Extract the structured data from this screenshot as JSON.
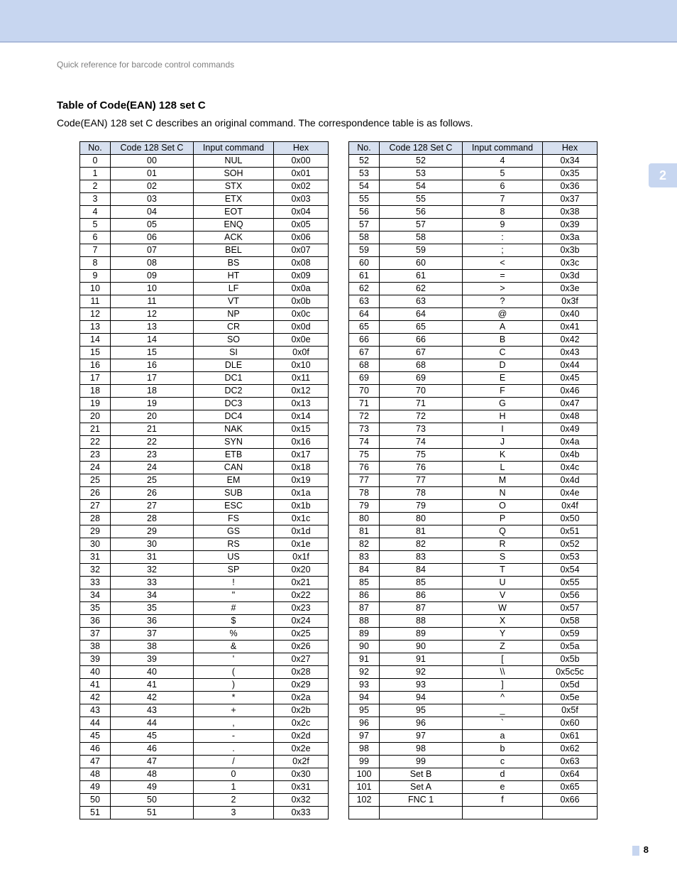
{
  "banner": {
    "background": "#c7d6f0",
    "border": "#aab9da"
  },
  "breadcrumb": "Quick reference for barcode control commands",
  "heading": "Table of Code(EAN) 128 set C",
  "intro": "Code(EAN) 128 set C describes an original command. The correspondence table is as follows.",
  "side_tab": "2",
  "page_number": "8",
  "table": {
    "header_bg": "#d7e0ef",
    "headers": [
      "No.",
      "Code 128 Set C",
      "Input command",
      "Hex"
    ],
    "rows_left": [
      [
        "0",
        "00",
        "NUL",
        "0x00"
      ],
      [
        "1",
        "01",
        "SOH",
        "0x01"
      ],
      [
        "2",
        "02",
        "STX",
        "0x02"
      ],
      [
        "3",
        "03",
        "ETX",
        "0x03"
      ],
      [
        "4",
        "04",
        "EOT",
        "0x04"
      ],
      [
        "5",
        "05",
        "ENQ",
        "0x05"
      ],
      [
        "6",
        "06",
        "ACK",
        "0x06"
      ],
      [
        "7",
        "07",
        "BEL",
        "0x07"
      ],
      [
        "8",
        "08",
        "BS",
        "0x08"
      ],
      [
        "9",
        "09",
        "HT",
        "0x09"
      ],
      [
        "10",
        "10",
        "LF",
        "0x0a"
      ],
      [
        "11",
        "11",
        "VT",
        "0x0b"
      ],
      [
        "12",
        "12",
        "NP",
        "0x0c"
      ],
      [
        "13",
        "13",
        "CR",
        "0x0d"
      ],
      [
        "14",
        "14",
        "SO",
        "0x0e"
      ],
      [
        "15",
        "15",
        "SI",
        "0x0f"
      ],
      [
        "16",
        "16",
        "DLE",
        "0x10"
      ],
      [
        "17",
        "17",
        "DC1",
        "0x11"
      ],
      [
        "18",
        "18",
        "DC2",
        "0x12"
      ],
      [
        "19",
        "19",
        "DC3",
        "0x13"
      ],
      [
        "20",
        "20",
        "DC4",
        "0x14"
      ],
      [
        "21",
        "21",
        "NAK",
        "0x15"
      ],
      [
        "22",
        "22",
        "SYN",
        "0x16"
      ],
      [
        "23",
        "23",
        "ETB",
        "0x17"
      ],
      [
        "24",
        "24",
        "CAN",
        "0x18"
      ],
      [
        "25",
        "25",
        "EM",
        "0x19"
      ],
      [
        "26",
        "26",
        "SUB",
        "0x1a"
      ],
      [
        "27",
        "27",
        "ESC",
        "0x1b"
      ],
      [
        "28",
        "28",
        "FS",
        "0x1c"
      ],
      [
        "29",
        "29",
        "GS",
        "0x1d"
      ],
      [
        "30",
        "30",
        "RS",
        "0x1e"
      ],
      [
        "31",
        "31",
        "US",
        "0x1f"
      ],
      [
        "32",
        "32",
        "SP",
        "0x20"
      ],
      [
        "33",
        "33",
        "!",
        "0x21"
      ],
      [
        "34",
        "34",
        "\"",
        "0x22"
      ],
      [
        "35",
        "35",
        "#",
        "0x23"
      ],
      [
        "36",
        "36",
        "$",
        "0x24"
      ],
      [
        "37",
        "37",
        "%",
        "0x25"
      ],
      [
        "38",
        "38",
        "&",
        "0x26"
      ],
      [
        "39",
        "39",
        "'",
        "0x27"
      ],
      [
        "40",
        "40",
        "(",
        "0x28"
      ],
      [
        "41",
        "41",
        ")",
        "0x29"
      ],
      [
        "42",
        "42",
        "*",
        "0x2a"
      ],
      [
        "43",
        "43",
        "+",
        "0x2b"
      ],
      [
        "44",
        "44",
        ",",
        "0x2c"
      ],
      [
        "45",
        "45",
        "-",
        "0x2d"
      ],
      [
        "46",
        "46",
        ".",
        "0x2e"
      ],
      [
        "47",
        "47",
        "/",
        "0x2f"
      ],
      [
        "48",
        "48",
        "0",
        "0x30"
      ],
      [
        "49",
        "49",
        "1",
        "0x31"
      ],
      [
        "50",
        "50",
        "2",
        "0x32"
      ],
      [
        "51",
        "51",
        "3",
        "0x33"
      ]
    ],
    "rows_right": [
      [
        "52",
        "52",
        "4",
        "0x34"
      ],
      [
        "53",
        "53",
        "5",
        "0x35"
      ],
      [
        "54",
        "54",
        "6",
        "0x36"
      ],
      [
        "55",
        "55",
        "7",
        "0x37"
      ],
      [
        "56",
        "56",
        "8",
        "0x38"
      ],
      [
        "57",
        "57",
        "9",
        "0x39"
      ],
      [
        "58",
        "58",
        ":",
        "0x3a"
      ],
      [
        "59",
        "59",
        ";",
        "0x3b"
      ],
      [
        "60",
        "60",
        "<",
        "0x3c"
      ],
      [
        "61",
        "61",
        "=",
        "0x3d"
      ],
      [
        "62",
        "62",
        ">",
        "0x3e"
      ],
      [
        "63",
        "63",
        "?",
        "0x3f"
      ],
      [
        "64",
        "64",
        "@",
        "0x40"
      ],
      [
        "65",
        "65",
        "A",
        "0x41"
      ],
      [
        "66",
        "66",
        "B",
        "0x42"
      ],
      [
        "67",
        "67",
        "C",
        "0x43"
      ],
      [
        "68",
        "68",
        "D",
        "0x44"
      ],
      [
        "69",
        "69",
        "E",
        "0x45"
      ],
      [
        "70",
        "70",
        "F",
        "0x46"
      ],
      [
        "71",
        "71",
        "G",
        "0x47"
      ],
      [
        "72",
        "72",
        "H",
        "0x48"
      ],
      [
        "73",
        "73",
        "I",
        "0x49"
      ],
      [
        "74",
        "74",
        "J",
        "0x4a"
      ],
      [
        "75",
        "75",
        "K",
        "0x4b"
      ],
      [
        "76",
        "76",
        "L",
        "0x4c"
      ],
      [
        "77",
        "77",
        "M",
        "0x4d"
      ],
      [
        "78",
        "78",
        "N",
        "0x4e"
      ],
      [
        "79",
        "79",
        "O",
        "0x4f"
      ],
      [
        "80",
        "80",
        "P",
        "0x50"
      ],
      [
        "81",
        "81",
        "Q",
        "0x51"
      ],
      [
        "82",
        "82",
        "R",
        "0x52"
      ],
      [
        "83",
        "83",
        "S",
        "0x53"
      ],
      [
        "84",
        "84",
        "T",
        "0x54"
      ],
      [
        "85",
        "85",
        "U",
        "0x55"
      ],
      [
        "86",
        "86",
        "V",
        "0x56"
      ],
      [
        "87",
        "87",
        "W",
        "0x57"
      ],
      [
        "88",
        "88",
        "X",
        "0x58"
      ],
      [
        "89",
        "89",
        "Y",
        "0x59"
      ],
      [
        "90",
        "90",
        "Z",
        "0x5a"
      ],
      [
        "91",
        "91",
        "[",
        "0x5b"
      ],
      [
        "92",
        "92",
        "\\\\",
        "0x5c5c"
      ],
      [
        "93",
        "93",
        "]",
        "0x5d"
      ],
      [
        "94",
        "94",
        "^",
        "0x5e"
      ],
      [
        "95",
        "95",
        "_",
        "0x5f"
      ],
      [
        "96",
        "96",
        "`",
        "0x60"
      ],
      [
        "97",
        "97",
        "a",
        "0x61"
      ],
      [
        "98",
        "98",
        "b",
        "0x62"
      ],
      [
        "99",
        "99",
        "c",
        "0x63"
      ],
      [
        "100",
        "Set B",
        "d",
        "0x64"
      ],
      [
        "101",
        "Set A",
        "e",
        "0x65"
      ],
      [
        "102",
        "FNC 1",
        "f",
        "0x66"
      ],
      [
        "",
        "",
        "",
        ""
      ]
    ]
  }
}
